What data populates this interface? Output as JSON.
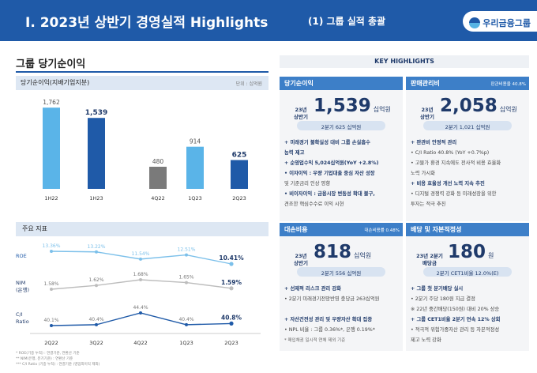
{
  "header": {
    "title": "I. 2023년 상반기 경영실적 Highlights",
    "subtitle": "(1) 그룹 실적 총괄",
    "logo": "우리금융그룹"
  },
  "left": {
    "section_title": "그룹 당기순이익",
    "profit_label": "당기순이익(지배기업지분)",
    "profit_unit": "단위 : 십억원",
    "indicators_label": "주요 지표",
    "footnotes": [
      "* ROE(기중 누적) : 연결기준, 연환산 기준",
      "** NIM(은행, 분기기준) : 연환산 기준",
      "*** C/I Ratio (기중 누적) : 연결기준 (영업외이익 제외)"
    ]
  },
  "chart_data": [
    {
      "type": "bar",
      "title": "당기순이익(지배기업지분)",
      "unit": "단위 : 십억원",
      "categories": [
        "1H22",
        "1H23",
        "4Q22",
        "1Q23",
        "2Q23"
      ],
      "values": [
        1762,
        1539,
        480,
        914,
        625
      ],
      "colors": [
        "#5ab4e8",
        "#1f5aa8",
        "#7a7a7a",
        "#5ab4e8",
        "#1f5aa8"
      ]
    },
    {
      "type": "line",
      "title": "주요 지표",
      "categories": [
        "2Q22",
        "3Q22",
        "4Q22",
        "1Q23",
        "2Q23"
      ],
      "series": [
        {
          "name": "ROE",
          "labels": [
            "13.36%",
            "13.22%",
            "11.54%",
            "12.51%",
            "10.41%"
          ],
          "values": [
            13.36,
            13.22,
            11.54,
            12.51,
            10.41
          ]
        },
        {
          "name": "NIM (은행)",
          "labels": [
            "1.58%",
            "1.62%",
            "1.68%",
            "1.65%",
            "1.59%"
          ],
          "values": [
            1.58,
            1.62,
            1.68,
            1.65,
            1.59
          ]
        },
        {
          "name": "C/I Ratio",
          "labels": [
            "40.1%",
            "40.4%",
            "44.4%",
            "40.4%",
            "40.8%"
          ],
          "values": [
            40.1,
            40.4,
            44.4,
            40.4,
            40.8
          ]
        }
      ]
    }
  ],
  "key_highlights": {
    "title": "KEY HIGHLIGHTS",
    "panels": [
      {
        "name": "당기순이익",
        "sub": "",
        "period": [
          "23년",
          "상반기"
        ],
        "value": "1,539",
        "unit": "십억원",
        "pill": "2분기 625 십억원",
        "lines": [
          {
            "cls": "b",
            "text": "+ 미래경기 불확실성 대비 그룹 손실흡수"
          },
          {
            "cls": "b",
            "text": "   능력 제고"
          },
          {
            "cls": "b",
            "text": "+ 순영업수익 5,024십억원(YoY +2.8%)"
          },
          {
            "cls": "b",
            "text": "  • 이자이익 : 우량 기업대출 중심 자산 성장"
          },
          {
            "cls": "g",
            "text": "     및 기준금리 인상 영향"
          },
          {
            "cls": "b",
            "text": "  • 비이자이익 : 금융시장 변동성 확대 불구,"
          },
          {
            "cls": "g",
            "text": "     견조한 핵심수수료 이익 시현"
          }
        ]
      },
      {
        "name": "판매관리비",
        "sub": "판관비용율 40.8%",
        "period": [
          "23년",
          "상반기"
        ],
        "value": "2,058",
        "unit": "십억원",
        "pill": "2분기 1,021 십억원",
        "lines": [
          {
            "cls": "b",
            "text": "+ 판관비 안정적 관리"
          },
          {
            "cls": "g",
            "text": "  • C/I Ratio 40.8% (YoY +0.7%p)"
          },
          {
            "cls": "g",
            "text": "  • 고물가 환경 지속에도 전사적 비용 효율화"
          },
          {
            "cls": "g",
            "text": "     노력 가시화"
          },
          {
            "cls": "b",
            "text": "+ 비용 효율성 개선 노력 지속 추진"
          },
          {
            "cls": "g",
            "text": "  • 디지털 경쟁력 강화 등 미래성장을 위한"
          },
          {
            "cls": "g",
            "text": "     투자는 적극 추진"
          }
        ]
      },
      {
        "name": "대손비용",
        "sub": "대손비용률 0.48%",
        "period": [
          "23년",
          "상반기"
        ],
        "value": "818",
        "unit": "십억원",
        "pill": "2분기 556 십억원",
        "lines": [
          {
            "cls": "b",
            "text": "+ 선제적 리스크 관리 강화"
          },
          {
            "cls": "g",
            "text": "  • 2분기 미래경기전망반영 충당금 263십억원"
          },
          {
            "cls": "g",
            "text": ""
          },
          {
            "cls": "b",
            "text": "+ 자산건전성 관리 및 우량자산 확대 집중"
          },
          {
            "cls": "g",
            "text": "  • NPL 비율 : 그룹 0.36%*, 은행 0.19%*"
          },
          {
            "cls": "s",
            "text": "    * 매입채권 일시적 연체 제외 기준"
          }
        ]
      },
      {
        "name": "배당 및 자본적정성",
        "sub": "",
        "period": [
          "23년 2분기",
          "배당금"
        ],
        "value": "180",
        "unit": "원",
        "pill": "2분기 CET1비율 12.0%(E)",
        "lines": [
          {
            "cls": "b",
            "text": "+ 그룹 첫 분기배당 실시"
          },
          {
            "cls": "g",
            "text": "  • 2분기 주당 180원 지급 결정"
          },
          {
            "cls": "g",
            "text": "     ※ 22년 중간배당(150원) 대비 20% 상승"
          },
          {
            "cls": "b",
            "text": "+ 그룹 CET1비율 2분기 연속 12% 상회"
          },
          {
            "cls": "g",
            "text": "  • 적극적 위험가중자산 관리 등 자본적정성"
          },
          {
            "cls": "g",
            "text": "     제고 노력 강화"
          }
        ]
      }
    ]
  }
}
